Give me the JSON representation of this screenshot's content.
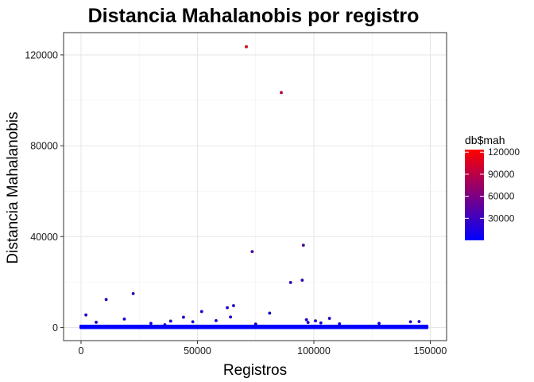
{
  "chart_data": {
    "type": "scatter",
    "title": "Distancia Mahalanobis por registro",
    "xlabel": "Registros",
    "ylabel": "Distancia Mahalanobis",
    "xlim": [
      -7500,
      157000
    ],
    "ylim": [
      -5800,
      129800
    ],
    "xticks": [
      0,
      50000,
      100000,
      150000
    ],
    "xtick_labels": [
      "0",
      "50000",
      "100000",
      "150000"
    ],
    "yticks": [
      0,
      40000,
      80000,
      120000
    ],
    "ytick_labels": [
      "0",
      "40000",
      "80000",
      "120000"
    ],
    "grid": true,
    "legend": {
      "title": "db$mah",
      "position": "right",
      "type": "colorbar",
      "ticks": [
        30000,
        60000,
        90000,
        120000
      ],
      "tick_labels": [
        "30000",
        "60000",
        "90000",
        "120000"
      ],
      "range": [
        0,
        123500
      ],
      "color_low": "#0000ff",
      "color_high": "#ff0000"
    },
    "baseline_band": {
      "x": [
        0,
        148500
      ],
      "y": [
        0,
        500
      ]
    },
    "x": [
      71000,
      86000,
      95500,
      73500,
      95000,
      90000,
      10800,
      22400,
      65500,
      51800,
      62800,
      44000,
      81000,
      2100,
      18600,
      64200,
      96800,
      100700,
      106700,
      58000,
      30000,
      38500,
      48000,
      75000,
      128000,
      141500,
      145200,
      6500,
      36000,
      97500,
      103000,
      111000
    ],
    "y": [
      123600,
      103400,
      36200,
      33400,
      20800,
      19800,
      12300,
      14900,
      9600,
      7000,
      8700,
      4500,
      6300,
      5500,
      3700,
      4600,
      3400,
      2900,
      4000,
      3000,
      1800,
      2800,
      2500,
      1500,
      1800,
      2500,
      2600,
      2300,
      1200,
      2200,
      2000,
      1600
    ]
  }
}
